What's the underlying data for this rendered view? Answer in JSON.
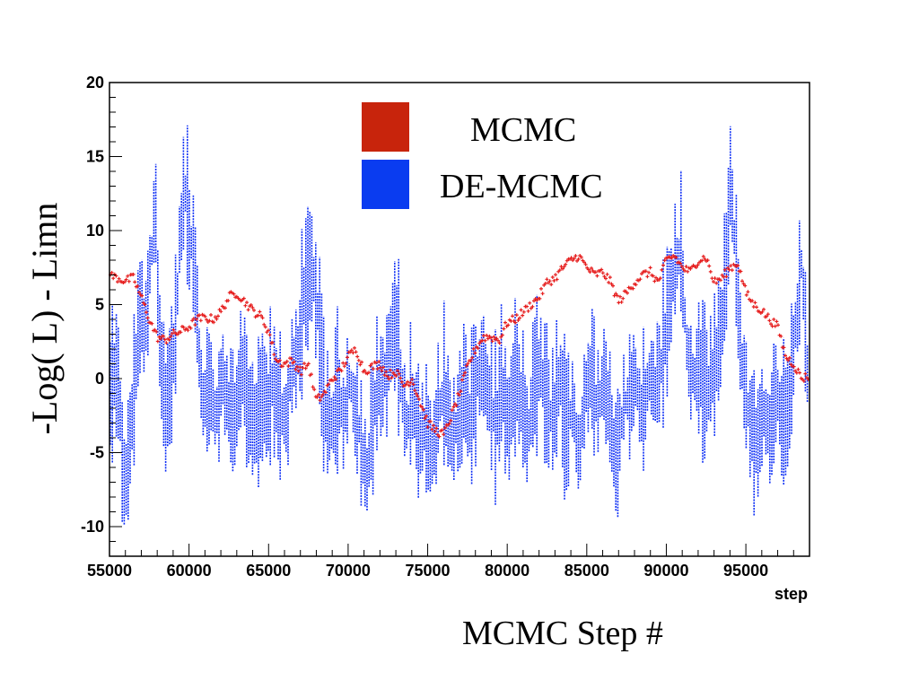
{
  "chart_data": {
    "type": "scatter",
    "xlabel": "MCMC Step #",
    "ylabel": "-Log( L) - Limn",
    "x_axis_unit_label": "step",
    "xlim": [
      55000,
      99000
    ],
    "ylim": [
      -12,
      20
    ],
    "x_ticks": [
      55000,
      60000,
      65000,
      70000,
      75000,
      80000,
      85000,
      90000,
      95000
    ],
    "y_ticks": [
      -10,
      -5,
      0,
      5,
      10,
      15,
      20
    ],
    "legend_position": "top-center",
    "series": [
      {
        "name": "DE-MCMC",
        "color": "#0a2cf5",
        "trace": [
          [
            55000,
            -2
          ],
          [
            55400,
            1
          ],
          [
            55700,
            -3
          ],
          [
            56000,
            -8
          ],
          [
            56300,
            -4
          ],
          [
            56600,
            -1
          ],
          [
            56900,
            5
          ],
          [
            57200,
            3
          ],
          [
            57600,
            8
          ],
          [
            57900,
            11
          ],
          [
            58200,
            1
          ],
          [
            58500,
            -2
          ],
          [
            58800,
            0
          ],
          [
            59100,
            2
          ],
          [
            59400,
            9
          ],
          [
            59700,
            13
          ],
          [
            60000,
            10
          ],
          [
            60300,
            8
          ],
          [
            60600,
            2
          ],
          [
            60900,
            -2
          ],
          [
            61300,
            -1
          ],
          [
            61700,
            -3
          ],
          [
            62100,
            0
          ],
          [
            62500,
            -2
          ],
          [
            62900,
            -3
          ],
          [
            63300,
            1
          ],
          [
            63700,
            -2
          ],
          [
            64100,
            -4
          ],
          [
            64500,
            -1
          ],
          [
            64900,
            -3
          ],
          [
            65300,
            0
          ],
          [
            65700,
            -2
          ],
          [
            66100,
            -3
          ],
          [
            66500,
            1
          ],
          [
            66900,
            2
          ],
          [
            67300,
            6
          ],
          [
            67700,
            8
          ],
          [
            68100,
            4
          ],
          [
            68500,
            -2
          ],
          [
            68900,
            -4
          ],
          [
            69300,
            -1
          ],
          [
            69700,
            -3
          ],
          [
            70100,
            0
          ],
          [
            70500,
            -2
          ],
          [
            70900,
            -5
          ],
          [
            71200,
            -7
          ],
          [
            71500,
            -3
          ],
          [
            71900,
            -1
          ],
          [
            72300,
            0
          ],
          [
            72700,
            2
          ],
          [
            73000,
            4
          ],
          [
            73300,
            0
          ],
          [
            73700,
            -3
          ],
          [
            74100,
            -2
          ],
          [
            74500,
            -4
          ],
          [
            74900,
            -3
          ],
          [
            75300,
            -5
          ],
          [
            75700,
            -2
          ],
          [
            76100,
            -1
          ],
          [
            76500,
            -4
          ],
          [
            76900,
            -3
          ],
          [
            77300,
            -1
          ],
          [
            77700,
            -3
          ],
          [
            78100,
            0
          ],
          [
            78500,
            1
          ],
          [
            78900,
            -2
          ],
          [
            79300,
            -3
          ],
          [
            79700,
            -1
          ],
          [
            80100,
            -3
          ],
          [
            80500,
            0
          ],
          [
            80900,
            -2
          ],
          [
            81300,
            -4
          ],
          [
            81700,
            -1
          ],
          [
            82100,
            1
          ],
          [
            82500,
            -2
          ],
          [
            82900,
            -3
          ],
          [
            83300,
            0
          ],
          [
            83700,
            -4
          ],
          [
            84100,
            -2
          ],
          [
            84500,
            -5
          ],
          [
            84900,
            -1
          ],
          [
            85300,
            0
          ],
          [
            85700,
            -2
          ],
          [
            86100,
            1
          ],
          [
            86500,
            -3
          ],
          [
            86900,
            -6
          ],
          [
            87300,
            -2
          ],
          [
            87700,
            -1
          ],
          [
            88100,
            0
          ],
          [
            88500,
            -3
          ],
          [
            88900,
            0
          ],
          [
            89300,
            -1
          ],
          [
            89700,
            1
          ],
          [
            90100,
            4
          ],
          [
            90500,
            7
          ],
          [
            90900,
            9
          ],
          [
            91300,
            2
          ],
          [
            91700,
            0
          ],
          [
            92100,
            1
          ],
          [
            92500,
            -1
          ],
          [
            92900,
            0
          ],
          [
            93300,
            2
          ],
          [
            93700,
            6
          ],
          [
            94000,
            14
          ],
          [
            94300,
            9
          ],
          [
            94600,
            3
          ],
          [
            94900,
            -1
          ],
          [
            95300,
            -3
          ],
          [
            95700,
            -5
          ],
          [
            96100,
            -2
          ],
          [
            96500,
            -4
          ],
          [
            96900,
            -1
          ],
          [
            97300,
            -3
          ],
          [
            97700,
            -2
          ],
          [
            98100,
            3
          ],
          [
            98500,
            8
          ],
          [
            99000,
            -2
          ]
        ]
      },
      {
        "name": "MCMC",
        "color": "#e61e1e",
        "trace": [
          [
            55000,
            7
          ],
          [
            55500,
            6.8
          ],
          [
            56000,
            6.6
          ],
          [
            56500,
            6.8
          ],
          [
            57000,
            5.5
          ],
          [
            57500,
            4.0
          ],
          [
            58000,
            2.8
          ],
          [
            58500,
            2.6
          ],
          [
            59000,
            3.0
          ],
          [
            59500,
            3.2
          ],
          [
            60000,
            3.5
          ],
          [
            60500,
            4.0
          ],
          [
            61000,
            4.1
          ],
          [
            61500,
            4.0
          ],
          [
            62000,
            4.5
          ],
          [
            62500,
            5.5
          ],
          [
            63000,
            5.8
          ],
          [
            63500,
            5.2
          ],
          [
            64000,
            4.6
          ],
          [
            64500,
            4.2
          ],
          [
            65000,
            3.2
          ],
          [
            65500,
            1.2
          ],
          [
            66000,
            1.0
          ],
          [
            66500,
            1.2
          ],
          [
            67000,
            0.5
          ],
          [
            67500,
            1.0
          ],
          [
            68000,
            -1.5
          ],
          [
            68500,
            -1.0
          ],
          [
            69000,
            0.0
          ],
          [
            69500,
            0.5
          ],
          [
            70000,
            1.5
          ],
          [
            70500,
            2.0
          ],
          [
            71000,
            0.5
          ],
          [
            71500,
            0.8
          ],
          [
            72000,
            1.0
          ],
          [
            72500,
            0.2
          ],
          [
            73000,
            0.5
          ],
          [
            73500,
            -0.5
          ],
          [
            74000,
            0.0
          ],
          [
            74500,
            -1.5
          ],
          [
            75000,
            -3.0
          ],
          [
            75500,
            -3.5
          ],
          [
            76000,
            -3.8
          ],
          [
            76500,
            -2.5
          ],
          [
            77000,
            -1.0
          ],
          [
            77500,
            0.8
          ],
          [
            78000,
            2.0
          ],
          [
            78500,
            2.8
          ],
          [
            79000,
            2.8
          ],
          [
            79500,
            2.6
          ],
          [
            80000,
            3.8
          ],
          [
            80500,
            4.0
          ],
          [
            81000,
            4.5
          ],
          [
            81500,
            5.0
          ],
          [
            82000,
            5.5
          ],
          [
            82500,
            6.5
          ],
          [
            83000,
            6.8
          ],
          [
            83500,
            7.5
          ],
          [
            84000,
            8.0
          ],
          [
            84500,
            8.3
          ],
          [
            85000,
            7.5
          ],
          [
            85500,
            7.0
          ],
          [
            86000,
            7.2
          ],
          [
            86500,
            6.5
          ],
          [
            87000,
            5.2
          ],
          [
            87500,
            5.8
          ],
          [
            88000,
            6.5
          ],
          [
            88500,
            7.0
          ],
          [
            89000,
            7.2
          ],
          [
            89500,
            6.5
          ],
          [
            90000,
            8.0
          ],
          [
            90500,
            8.3
          ],
          [
            91000,
            7.5
          ],
          [
            91500,
            7.2
          ],
          [
            92000,
            8.0
          ],
          [
            92500,
            8.2
          ],
          [
            93000,
            6.5
          ],
          [
            93500,
            6.8
          ],
          [
            94000,
            7.5
          ],
          [
            94500,
            7.8
          ],
          [
            95000,
            5.8
          ],
          [
            95500,
            5.0
          ],
          [
            96000,
            4.6
          ],
          [
            96500,
            4.0
          ],
          [
            97000,
            3.5
          ],
          [
            97500,
            1.5
          ],
          [
            98000,
            1.0
          ],
          [
            98500,
            0.0
          ],
          [
            99000,
            0.2
          ]
        ]
      }
    ],
    "legend": [
      {
        "name": "MCMC",
        "color": "#c8240c"
      },
      {
        "name": "DE-MCMC",
        "color": "#0a3cf0"
      }
    ]
  }
}
